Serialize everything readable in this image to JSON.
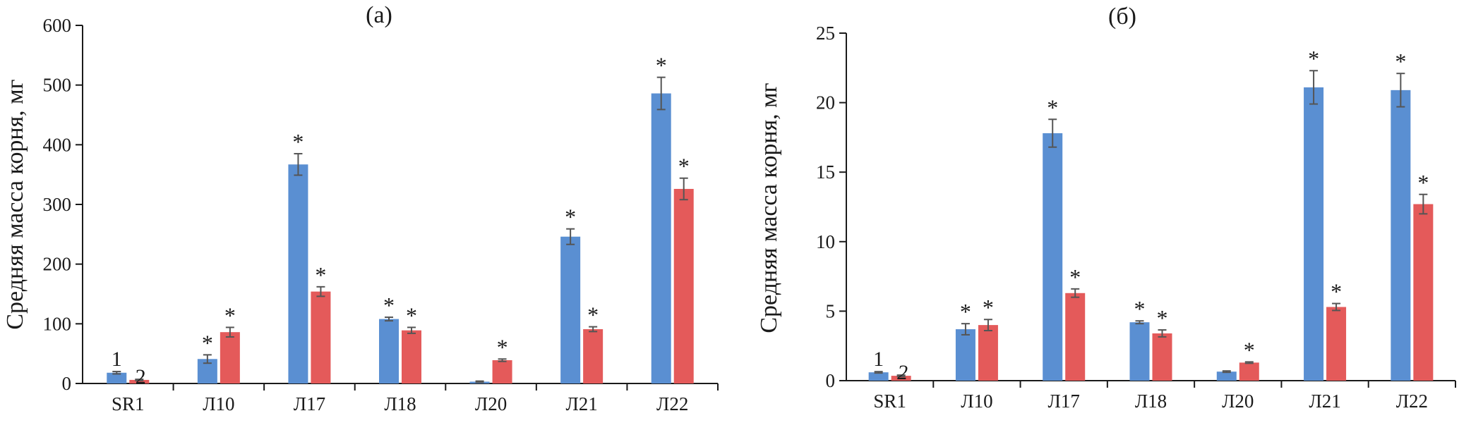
{
  "chart_data": [
    {
      "type": "bar",
      "title": "(а)",
      "ylabel": "Средняя масса корня, мг",
      "xlabel": "",
      "ylim": [
        0,
        600
      ],
      "yticks": [
        0,
        100,
        200,
        300,
        400,
        500,
        600
      ],
      "categories": [
        "SR1",
        "Л10",
        "Л17",
        "Л18",
        "Л20",
        "Л21",
        "Л22"
      ],
      "series": [
        {
          "name": "1",
          "color": "#5a8fd2",
          "values": [
            18,
            41,
            367,
            108,
            3,
            246,
            486
          ],
          "errors": [
            2,
            7,
            18,
            3,
            1,
            13,
            27
          ],
          "significance": [
            "",
            "*",
            "*",
            "*",
            "",
            "*",
            "*"
          ]
        },
        {
          "name": "2",
          "color": "#e45a5a",
          "values": [
            6,
            86,
            154,
            89,
            39,
            91,
            326
          ],
          "errors": [
            1,
            8,
            8,
            5,
            2,
            4,
            18
          ],
          "significance": [
            "",
            "*",
            "*",
            "*",
            "*",
            "*",
            "*"
          ]
        }
      ]
    },
    {
      "type": "bar",
      "title": "(б)",
      "ylabel": "Средняя масса корня, мг",
      "xlabel": "",
      "ylim": [
        0,
        25
      ],
      "yticks": [
        0,
        5,
        10,
        15,
        20,
        25
      ],
      "categories": [
        "SR1",
        "Л10",
        "Л17",
        "Л18",
        "Л20",
        "Л21",
        "Л22"
      ],
      "series": [
        {
          "name": "1",
          "color": "#5a8fd2",
          "values": [
            0.6,
            3.7,
            17.8,
            4.2,
            0.65,
            21.1,
            20.9
          ],
          "errors": [
            0.05,
            0.4,
            1.0,
            0.1,
            0.05,
            1.2,
            1.2
          ],
          "significance": [
            "",
            "*",
            "*",
            "*",
            "",
            "*",
            "*"
          ]
        },
        {
          "name": "2",
          "color": "#e45a5a",
          "values": [
            0.35,
            4.0,
            6.3,
            3.4,
            1.3,
            5.3,
            12.7
          ],
          "errors": [
            0.05,
            0.4,
            0.3,
            0.25,
            0.05,
            0.25,
            0.7
          ],
          "significance": [
            "",
            "*",
            "*",
            "*",
            "*",
            "*",
            "*"
          ]
        }
      ]
    }
  ]
}
